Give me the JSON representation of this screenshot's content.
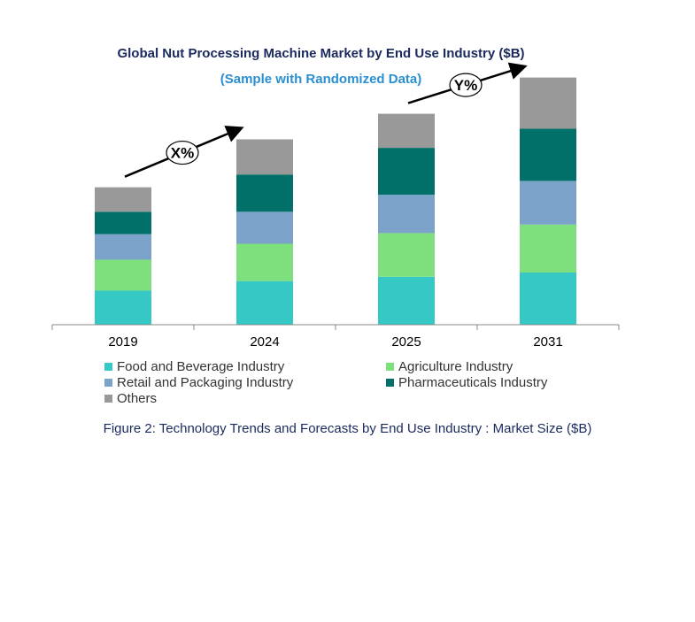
{
  "chart_data": {
    "type": "bar",
    "stacked": true,
    "title": "Global Nut Processing Machine Market by End Use Industry ($B)",
    "subtitle": "(Sample with Randomized Data)",
    "categories": [
      "2019",
      "2024",
      "2025",
      "2031"
    ],
    "series": [
      {
        "name": "Food and Beverage Industry",
        "color": "#36c8c4",
        "values": [
          32,
          41,
          45,
          49
        ]
      },
      {
        "name": "Agriculture Industry",
        "color": "#7de07d",
        "values": [
          29,
          35,
          41,
          45
        ]
      },
      {
        "name": "Retail and Packaging Industry",
        "color": "#7ba3c9",
        "values": [
          24,
          30,
          36,
          41
        ]
      },
      {
        "name": "Pharmaceuticals Industry",
        "color": "#007068",
        "values": [
          21,
          35,
          44,
          49
        ]
      },
      {
        "name": "Others",
        "color": "#999999",
        "values": [
          23,
          33,
          32,
          48
        ]
      }
    ],
    "ylim": [
      0,
      240
    ],
    "xlabel": "",
    "ylabel": "",
    "annotations": [
      {
        "label": "X%",
        "from": "2019",
        "to": "2024"
      },
      {
        "label": "Y%",
        "from": "2025",
        "to": "2031"
      }
    ],
    "caption": "Figure 2: Technology  Trends  and Forecasts by  End Use Industry   : Market Size ($B)"
  }
}
